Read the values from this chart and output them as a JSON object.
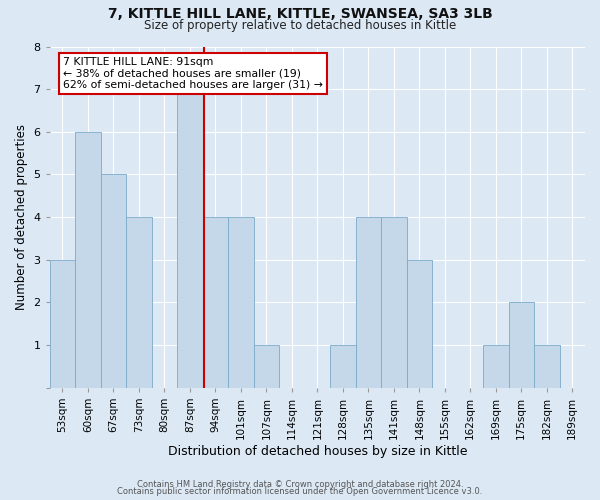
{
  "title1": "7, KITTLE HILL LANE, KITTLE, SWANSEA, SA3 3LB",
  "title2": "Size of property relative to detached houses in Kittle",
  "xlabel": "Distribution of detached houses by size in Kittle",
  "ylabel": "Number of detached properties",
  "bin_labels": [
    "53sqm",
    "60sqm",
    "67sqm",
    "73sqm",
    "80sqm",
    "87sqm",
    "94sqm",
    "101sqm",
    "107sqm",
    "114sqm",
    "121sqm",
    "128sqm",
    "135sqm",
    "141sqm",
    "148sqm",
    "155sqm",
    "162sqm",
    "169sqm",
    "175sqm",
    "182sqm",
    "189sqm"
  ],
  "bar_values": [
    3,
    6,
    5,
    4,
    0,
    7,
    4,
    4,
    1,
    0,
    0,
    1,
    4,
    4,
    3,
    0,
    0,
    1,
    2,
    1,
    0
  ],
  "bar_color": "#c5d8ea",
  "bar_edge_color": "#7aaac8",
  "property_line_x": 5.57,
  "property_line_color": "#cc0000",
  "annotation_text": "7 KITTLE HILL LANE: 91sqm\n← 38% of detached houses are smaller (19)\n62% of semi-detached houses are larger (31) →",
  "annotation_box_color": "#ffffff",
  "annotation_box_edge": "#cc0000",
  "ylim": [
    0,
    8
  ],
  "yticks": [
    0,
    1,
    2,
    3,
    4,
    5,
    6,
    7,
    8
  ],
  "footer1": "Contains HM Land Registry data © Crown copyright and database right 2024.",
  "footer2": "Contains public sector information licensed under the Open Government Licence v3.0.",
  "bg_color": "#dce9f5",
  "plot_bg_color": "#dce9f5",
  "grid_color": "#ffffff",
  "title1_fontsize": 10,
  "title2_fontsize": 8.5,
  "xlabel_fontsize": 9,
  "ylabel_fontsize": 8.5,
  "tick_fontsize": 7.5,
  "ann_fontsize": 7.8,
  "footer_fontsize": 6
}
